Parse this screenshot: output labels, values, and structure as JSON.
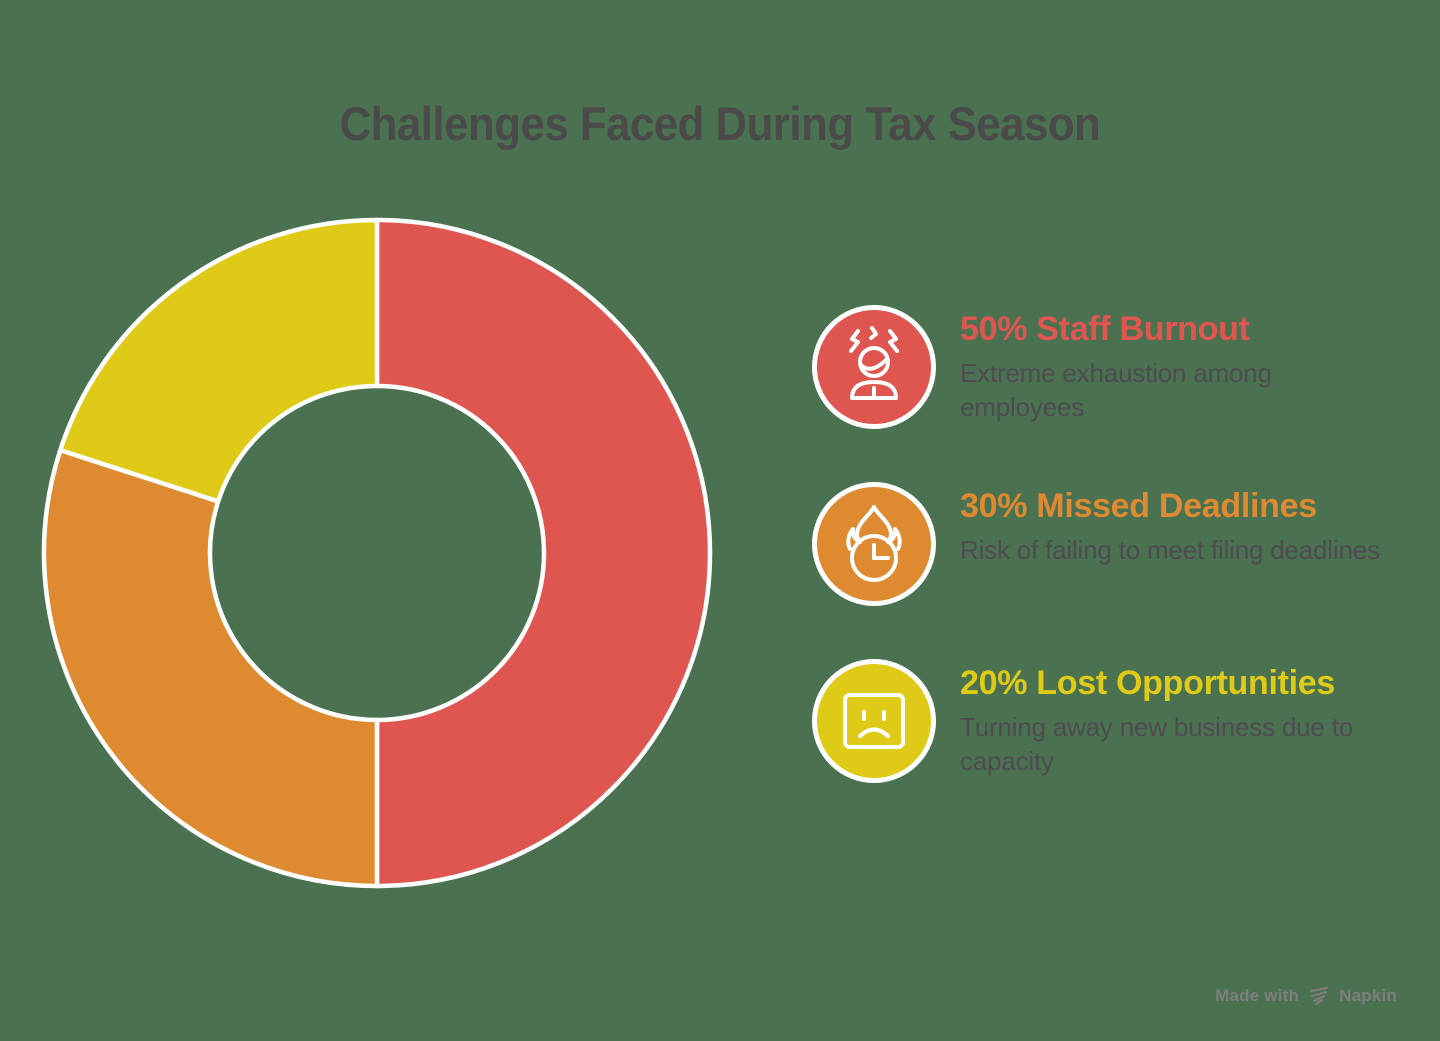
{
  "title": "Challenges Faced During Tax Season",
  "chart_data": {
    "type": "pie",
    "variant": "donut",
    "title": "Challenges Faced During Tax Season",
    "start_angle_deg": 0,
    "direction": "clockwise",
    "inner_radius_ratio": 0.5,
    "legend_position": "right",
    "categories": [
      "Staff Burnout",
      "Missed Deadlines",
      "Lost Opportunities"
    ],
    "values": [
      50,
      30,
      20
    ],
    "segments": [
      {
        "label": "Staff Burnout",
        "slug": "staff-burnout",
        "value_pct": 50,
        "color": "#DF5651"
      },
      {
        "label": "Missed Deadlines",
        "slug": "missed-deadlines",
        "value_pct": 30,
        "color": "#DD8A31"
      },
      {
        "label": "Lost Opportunities",
        "slug": "lost-opportunities",
        "value_pct": 20,
        "color": "#DFCB17"
      }
    ]
  },
  "legend": {
    "items": [
      {
        "title": "50% Staff Burnout",
        "description": "Extreme exhaustion among employees",
        "color": "#DF5651",
        "icon": "stressed-person-icon"
      },
      {
        "title": "30% Missed Deadlines",
        "description": "Risk of failing to meet filing deadlines",
        "color": "#DD8A31",
        "icon": "flaming-clock-icon"
      },
      {
        "title": "20% Lost Opportunities",
        "description": "Turning away new business due to capacity",
        "color": "#DFCB17",
        "icon": "sad-face-icon"
      }
    ]
  },
  "footer": {
    "made_with_label": "Made with",
    "brand_label": "Napkin"
  },
  "colors": {
    "background": "#4A7150",
    "title_text": "#4A4A4A",
    "description_text": "#4E4B51",
    "watermark_text": "#7E7E7E",
    "segment_separator": "#FFFFFF",
    "icon_stroke": "#FFFFFF"
  }
}
